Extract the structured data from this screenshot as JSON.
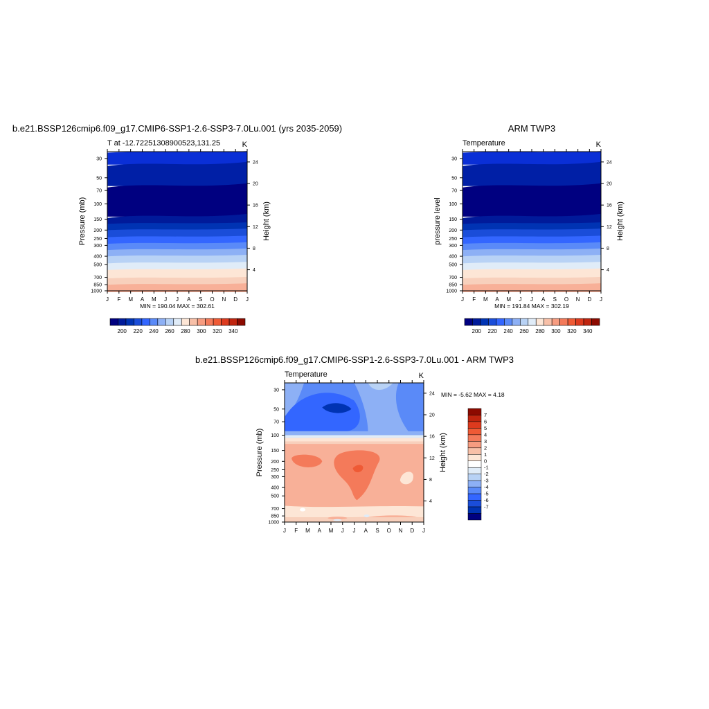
{
  "panels": [
    {
      "main_title": "b.e21.BSSP126cmip6.f09_g17.CMIP6-SSP1-2.6-SSP3-7.0Lu.001 (yrs 2035-2059)",
      "left_label": "T at -12.72251308900523,131.25",
      "right_label": "K",
      "ylabel": "Pressure (mb)",
      "y2label": "Height (km)",
      "minmax": "MIN = 190.04 MAX = 302.61"
    },
    {
      "main_title": "ARM TWP3",
      "left_label": "Temperature",
      "right_label": "K",
      "ylabel": "pressure level",
      "y2label": "Height (km)",
      "minmax": "MIN = 191.84 MAX = 302.19"
    },
    {
      "main_title": "b.e21.BSSP126cmip6.f09_g17.CMIP6-SSP1-2.6-SSP3-7.0Lu.001 - ARM TWP3",
      "left_label": "Temperature",
      "right_label": "K",
      "ylabel": "Pressure (mb)",
      "y2label": "Height (km)",
      "minmax": "MIN =  -5.62 MAX =   4.18"
    }
  ],
  "chart_data": [
    {
      "type": "heatmap",
      "title": "b.e21.BSSP126cmip6.f09_g17.CMIP6-SSP1-2.6-SSP3-7.0Lu.001 (yrs 2035-2059)",
      "xlabel": "",
      "ylabel": "Pressure (mb)",
      "y2label": "Height (km)",
      "x": [
        "J",
        "F",
        "M",
        "A",
        "M",
        "J",
        "J",
        "A",
        "S",
        "O",
        "N",
        "D",
        "J"
      ],
      "y_ticks": [
        30,
        50,
        70,
        100,
        150,
        200,
        250,
        300,
        400,
        500,
        700,
        850,
        1000
      ],
      "y2_ticks": [
        4,
        8,
        12,
        16,
        20,
        24
      ],
      "ylim": [
        1000,
        25
      ],
      "log_y": true,
      "levels": [
        195,
        200,
        205,
        210,
        215,
        220,
        225,
        230,
        235,
        240,
        245,
        250,
        255,
        260,
        265,
        270,
        275,
        280,
        285,
        290,
        295,
        300,
        305
      ],
      "profile_hint": "cold band ~190 K near 70-150 mb; warm ~300 K near surface",
      "min": 190.04,
      "max": 302.61
    },
    {
      "type": "heatmap",
      "title": "ARM TWP3",
      "ylabel": "pressure level",
      "y2label": "Height (km)",
      "x": [
        "J",
        "F",
        "M",
        "A",
        "M",
        "J",
        "J",
        "A",
        "S",
        "O",
        "N",
        "D",
        "J"
      ],
      "y_ticks": [
        30,
        50,
        70,
        100,
        150,
        200,
        250,
        300,
        400,
        500,
        700,
        850,
        1000
      ],
      "y2_ticks": [
        4,
        8,
        12,
        16,
        20,
        24
      ],
      "ylim": [
        1000,
        25
      ],
      "log_y": true,
      "min": 191.84,
      "max": 302.19
    },
    {
      "type": "heatmap",
      "title": "b.e21.BSSP126cmip6.f09_g17.CMIP6-SSP1-2.6-SSP3-7.0Lu.001 - ARM TWP3",
      "ylabel": "Pressure (mb)",
      "y2label": "Height (km)",
      "x": [
        "J",
        "F",
        "M",
        "A",
        "M",
        "J",
        "J",
        "A",
        "S",
        "O",
        "N",
        "D",
        "J"
      ],
      "y_ticks": [
        30,
        50,
        70,
        100,
        150,
        200,
        250,
        300,
        400,
        500,
        700,
        850,
        1000
      ],
      "y2_ticks": [
        4,
        8,
        12,
        16,
        20,
        24
      ],
      "ylim": [
        1000,
        25
      ],
      "log_y": true,
      "min": -5.62,
      "max": 4.18
    }
  ],
  "colorbar_abs": {
    "labels": [
      "200",
      "220",
      "240",
      "260",
      "280",
      "300",
      "320",
      "340"
    ],
    "colors": [
      "#000080",
      "#001a9a",
      "#0033b3",
      "#1a4dd9",
      "#3366ff",
      "#5a8af8",
      "#8db0f5",
      "#b8d2f5",
      "#e0ecf8",
      "#fde6d6",
      "#f8c0a8",
      "#f79c80",
      "#f47a5a",
      "#ef5a35",
      "#dd3a1e",
      "#c0250f",
      "#8c0a00"
    ]
  },
  "colorbar_diff": {
    "labels": [
      "7",
      "6",
      "5",
      "4",
      "3",
      "2",
      "1",
      "0",
      "-1",
      "-2",
      "-3",
      "-4",
      "-5",
      "-6",
      "-7"
    ],
    "colors": [
      "#8c0a00",
      "#c0250f",
      "#dd3a1e",
      "#ef5a35",
      "#f47a5a",
      "#f79c80",
      "#f8c0a8",
      "#fde6d6",
      "#ffffff",
      "#e0ecf8",
      "#b8d2f5",
      "#8db0f5",
      "#5a8af8",
      "#3366ff",
      "#1a4dd9",
      "#0033b3",
      "#000080"
    ]
  },
  "month_ticks": [
    "J",
    "F",
    "M",
    "A",
    "M",
    "J",
    "J",
    "A",
    "S",
    "O",
    "N",
    "D",
    "J"
  ],
  "pressure_ticks": [
    "30",
    "50",
    "70",
    "100",
    "150",
    "200",
    "250",
    "300",
    "400",
    "500",
    "700",
    "850",
    "1000"
  ],
  "height_ticks": [
    "4",
    "8",
    "12",
    "16",
    "20",
    "24"
  ]
}
